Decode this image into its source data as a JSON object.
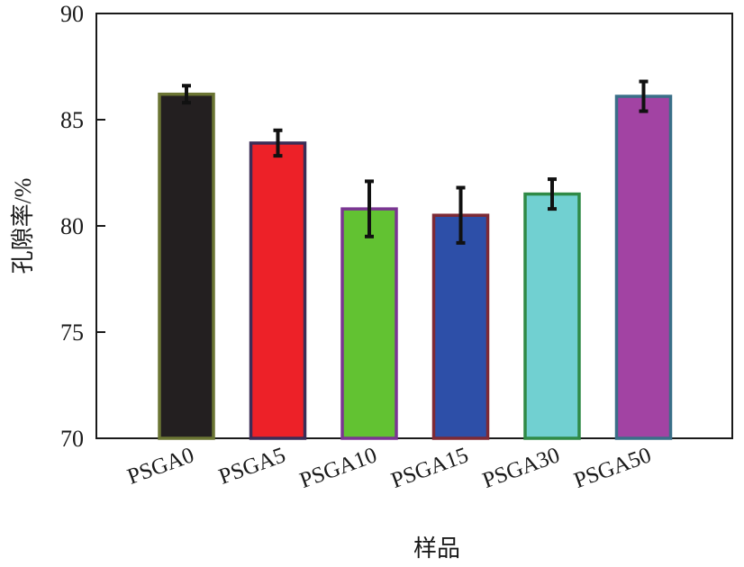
{
  "chart_data": {
    "type": "bar",
    "title": "",
    "xlabel": "样品",
    "ylabel": "孔隙率/%",
    "ylim": [
      70,
      90
    ],
    "yticks": [
      70,
      75,
      80,
      85,
      90
    ],
    "grid": false,
    "categories": [
      "PSGA0",
      "PSGA5",
      "PSGA10",
      "PSGA15",
      "PSGA30",
      "PSGA50"
    ],
    "values": [
      86.2,
      83.9,
      80.8,
      80.5,
      81.5,
      86.1
    ],
    "errors": [
      0.4,
      0.6,
      1.3,
      1.3,
      0.7,
      0.7
    ],
    "fill_colors": [
      "#231f20",
      "#ed2128",
      "#62c232",
      "#2d4fa8",
      "#71d0d1",
      "#a243a3"
    ],
    "edge_colors": [
      "#6b7533",
      "#3b2d57",
      "#7a3592",
      "#7d2a35",
      "#2f8a46",
      "#3a6f88"
    ]
  }
}
